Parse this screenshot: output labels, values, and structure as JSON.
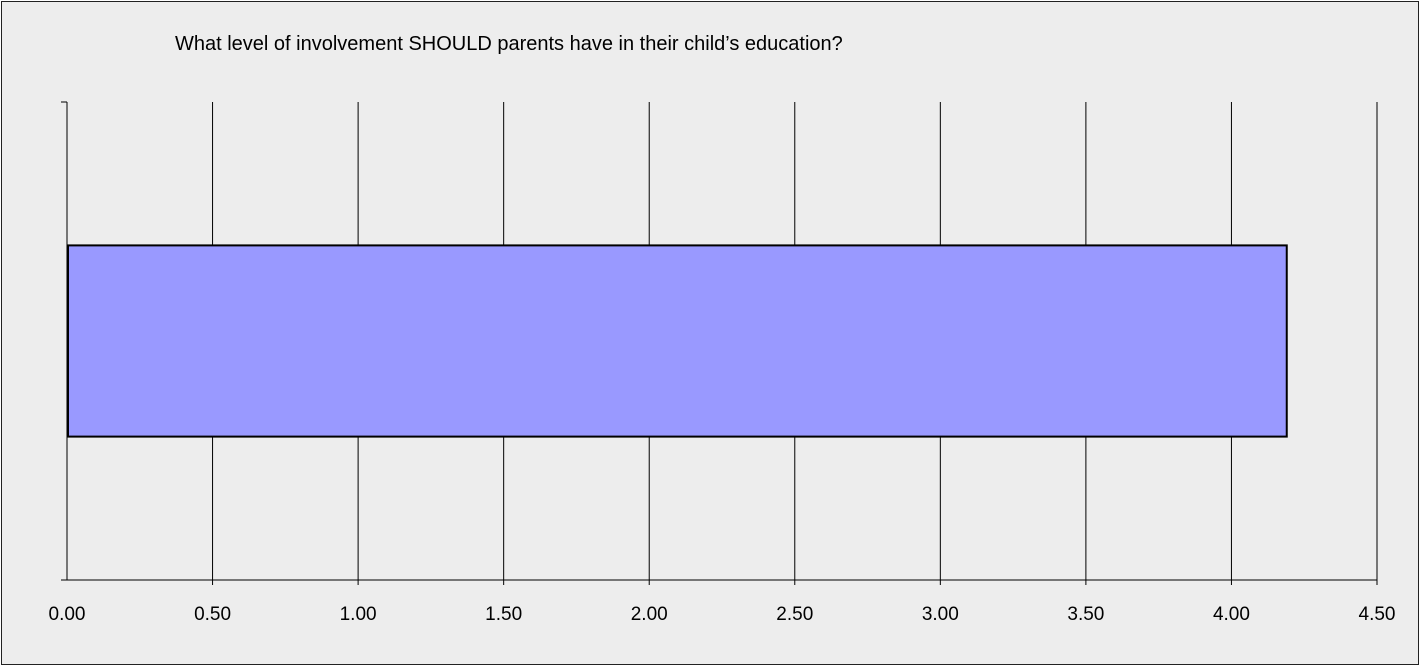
{
  "chart_data": {
    "type": "bar",
    "orientation": "horizontal",
    "title": "What level of involvement SHOULD parents have in their child’s education?",
    "xlabel": "",
    "ylabel": "",
    "categories": [
      ""
    ],
    "values": [
      4.19
    ],
    "xlim": [
      0,
      4.5
    ],
    "x_ticks": [
      "0.00",
      "0.50",
      "1.00",
      "1.50",
      "2.00",
      "2.50",
      "3.00",
      "3.50",
      "4.00",
      "4.50"
    ],
    "grid": true,
    "legend": "none",
    "colors": {
      "bar_fill": "#9999ff",
      "bar_stroke": "#000000",
      "background": "#ededed",
      "gridline": "#000000"
    }
  }
}
